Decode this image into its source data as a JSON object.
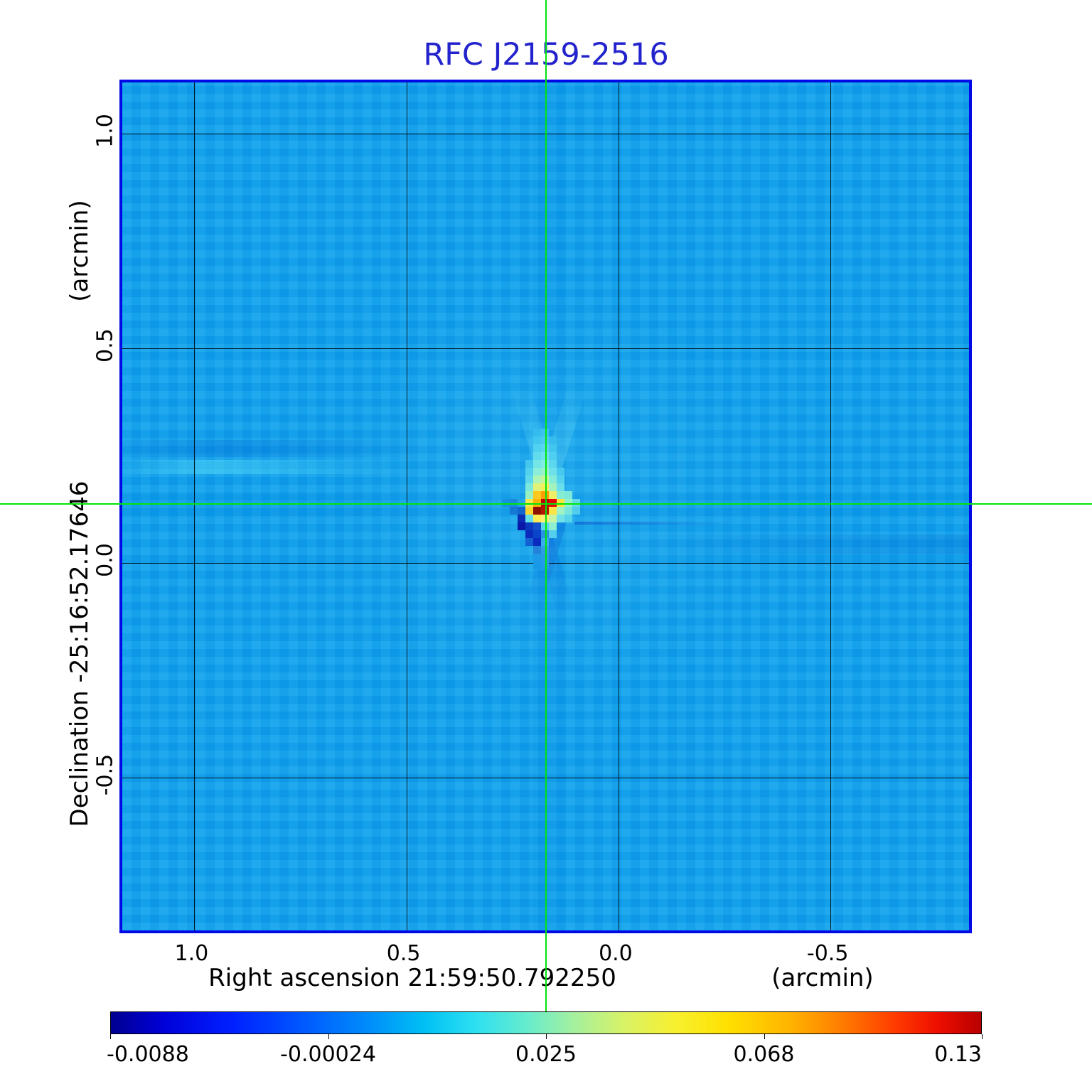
{
  "title": "RFC J2159-2516",
  "colors": {
    "title": "#2323cd",
    "plot_background": "#0da2ec",
    "plot_border": "#0009e6",
    "grid": "#1a1a1a",
    "crosshair": "#00e60a"
  },
  "axes": {
    "x": {
      "label": "Right ascension  21:59:50.792250",
      "unit": "(arcmin)",
      "tick_labels": [
        "1.0",
        "0.5",
        "0.0",
        "-0.5"
      ],
      "tick_values": [
        1.0,
        0.5,
        0.0,
        -0.5
      ],
      "range_arcmin": [
        1.17,
        -0.84
      ]
    },
    "y": {
      "label": "Declination  -25:16:52.17646",
      "unit": "(arcmin)",
      "tick_labels": [
        "1.0",
        "0.5",
        "0.0",
        "-0.5"
      ],
      "tick_values": [
        1.0,
        0.5,
        0.0,
        -0.5
      ],
      "range_arcmin": [
        1.12,
        -0.87
      ]
    }
  },
  "crosshair": {
    "x_arcmin": 0.164,
    "y_arcmin": 0.13
  },
  "colorbar": {
    "tick_labels": [
      "-0.0088",
      "-0.00024",
      "0.025",
      "0.068",
      "0.13"
    ],
    "tick_values": [
      -0.0088,
      -0.00024,
      0.025,
      0.068,
      0.13
    ],
    "gradient_stops": [
      [
        "#000090",
        0
      ],
      [
        "#0000d8",
        6
      ],
      [
        "#0020ff",
        14
      ],
      [
        "#0058ff",
        22
      ],
      [
        "#0090fa",
        30
      ],
      [
        "#00c0f4",
        36
      ],
      [
        "#2ee0f0",
        42
      ],
      [
        "#68eccc",
        48
      ],
      [
        "#a2f0a0",
        53
      ],
      [
        "#d8f266",
        59
      ],
      [
        "#f8f02e",
        65
      ],
      [
        "#ffe000",
        71
      ],
      [
        "#ffb400",
        78
      ],
      [
        "#ff7c00",
        84
      ],
      [
        "#ff3c00",
        90
      ],
      [
        "#ee0e00",
        95
      ],
      [
        "#b80000",
        100
      ]
    ]
  },
  "chart_data": {
    "type": "heatmap",
    "title": "RFC J2159-2516",
    "xlabel": "Right ascension  21:59:50.792250 (arcmin)",
    "ylabel": "Declination  -25:16:52.17646 (arcmin)",
    "x_ticks_arcmin": [
      1.0,
      0.5,
      0.0,
      -0.5
    ],
    "y_ticks_arcmin": [
      1.0,
      0.5,
      0.0,
      -0.5
    ],
    "x_range_arcmin": [
      1.17,
      -0.84
    ],
    "y_range_arcmin": [
      1.12,
      -0.87
    ],
    "grid": true,
    "colorbar_range": [
      -0.0088,
      0.13
    ],
    "colorbar_tick_values": [
      -0.0088,
      -0.00024,
      0.025,
      0.068,
      0.13
    ],
    "peak_position_arcmin": {
      "x": 0.164,
      "y": 0.13
    },
    "peak_value": 0.13,
    "background_value": 0.0,
    "source_pixels": {
      "cell_size_px": 11,
      "cells": [
        [
          -1,
          -9,
          "#34bcf0"
        ],
        [
          0,
          -9,
          "#3cc2f0"
        ],
        [
          -1,
          -8,
          "#42c8f0"
        ],
        [
          0,
          -8,
          "#4accf0"
        ],
        [
          1,
          -8,
          "#38bcee"
        ],
        [
          -1,
          -7,
          "#50d2f0"
        ],
        [
          0,
          -7,
          "#5ad6f0"
        ],
        [
          1,
          -7,
          "#42c6ee"
        ],
        [
          -1,
          -6,
          "#60dcee"
        ],
        [
          0,
          -6,
          "#6ce2ec"
        ],
        [
          1,
          -6,
          "#4ecef0"
        ],
        [
          -2,
          -5,
          "#44c6ee"
        ],
        [
          -1,
          -5,
          "#74e6e8"
        ],
        [
          0,
          -5,
          "#80ece2"
        ],
        [
          1,
          -5,
          "#5cd8ee"
        ],
        [
          -2,
          -4,
          "#52d0ee"
        ],
        [
          -1,
          -4,
          "#8aeeda"
        ],
        [
          0,
          -4,
          "#9af2cc"
        ],
        [
          1,
          -4,
          "#6ee0ea"
        ],
        [
          2,
          -4,
          "#48caee"
        ],
        [
          -2,
          -3,
          "#60d8ec"
        ],
        [
          -1,
          -3,
          "#aef4b4"
        ],
        [
          0,
          -3,
          "#c4f49c"
        ],
        [
          1,
          -3,
          "#84ecd8"
        ],
        [
          2,
          -3,
          "#54d2ee"
        ],
        [
          -2,
          -2,
          "#7ce8da"
        ],
        [
          -1,
          -2,
          "#e2f276"
        ],
        [
          0,
          -2,
          "#f2ee5e"
        ],
        [
          1,
          -2,
          "#a4f2be"
        ],
        [
          2,
          -2,
          "#6adeea"
        ],
        [
          -2,
          -1,
          "#96f0c0"
        ],
        [
          -1,
          -1,
          "#ffc81e"
        ],
        [
          0,
          -1,
          "#ff9e00"
        ],
        [
          1,
          -1,
          "#f0ee66"
        ],
        [
          2,
          -1,
          "#86ecd4"
        ],
        [
          3,
          -1,
          "#7ee8da"
        ],
        [
          -5,
          0,
          "#1692e2"
        ],
        [
          -4,
          0,
          "#1b8adc"
        ],
        [
          -3,
          0,
          "#28a4e8"
        ],
        [
          -2,
          0,
          "#ffe84e"
        ],
        [
          -1,
          0,
          "#ffb400"
        ],
        [
          0,
          0,
          "#c00000"
        ],
        [
          1,
          0,
          "#e60000"
        ],
        [
          2,
          0,
          "#ffe23a"
        ],
        [
          3,
          0,
          "#92f0cc"
        ],
        [
          4,
          0,
          "#64dce8"
        ],
        [
          -4,
          1,
          "#1478d4"
        ],
        [
          -3,
          1,
          "#0f66cc"
        ],
        [
          -2,
          1,
          "#ffd62e"
        ],
        [
          -1,
          1,
          "#8e0e00"
        ],
        [
          0,
          1,
          "#b41600"
        ],
        [
          1,
          1,
          "#ffe448"
        ],
        [
          2,
          1,
          "#a0f2c2"
        ],
        [
          3,
          1,
          "#78e6dc"
        ],
        [
          4,
          1,
          "#50ccec"
        ],
        [
          -3,
          2,
          "#0a2cb4"
        ],
        [
          -2,
          2,
          "#64dfe8"
        ],
        [
          -1,
          2,
          "#ffec54"
        ],
        [
          0,
          2,
          "#ffee70"
        ],
        [
          1,
          2,
          "#c6f4a4"
        ],
        [
          2,
          2,
          "#70e2e6"
        ],
        [
          3,
          2,
          "#58d4ea"
        ],
        [
          -3,
          3,
          "#0a18a8"
        ],
        [
          -2,
          3,
          "#0a38c0"
        ],
        [
          -1,
          3,
          "#1450cc"
        ],
        [
          0,
          3,
          "#56d6ec"
        ],
        [
          1,
          3,
          "#8eeed2"
        ],
        [
          -2,
          4,
          "#0a2cbc"
        ],
        [
          -1,
          4,
          "#0a44c8"
        ],
        [
          0,
          4,
          "#2892e2"
        ],
        [
          1,
          4,
          "#52d0ec"
        ],
        [
          -2,
          5,
          "#1560d0"
        ],
        [
          -1,
          5,
          "#0a2cbe"
        ],
        [
          0,
          5,
          "#38aeea"
        ],
        [
          -1,
          6,
          "#2382da"
        ],
        [
          0,
          6,
          "#2f9ce6"
        ],
        [
          -1,
          7,
          "#1e9ae8"
        ],
        [
          0,
          7,
          "#259ce8"
        ],
        [
          -1,
          8,
          "#189ae9"
        ],
        [
          0,
          8,
          "#1e9ce9"
        ]
      ]
    }
  }
}
